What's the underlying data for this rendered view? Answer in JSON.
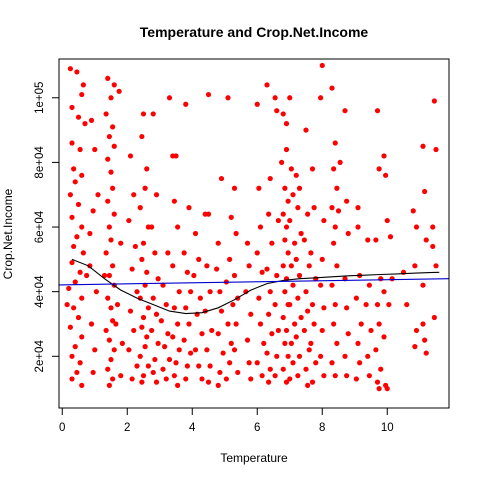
{
  "chart_data": {
    "type": "scatter",
    "title": "Temperature and Crop.Net.Income",
    "xlabel": "Temperature",
    "ylabel": "Crop.Net.Income",
    "xlim": [
      -0.1,
      11.9
    ],
    "ylim": [
      4000,
      112000
    ],
    "x_ticks": [
      0,
      2,
      4,
      6,
      8,
      10
    ],
    "x_tick_labels": [
      "0",
      "2",
      "4",
      "6",
      "8",
      "10"
    ],
    "y_ticks": [
      20000,
      40000,
      60000,
      80000,
      100000
    ],
    "y_tick_labels": [
      "2e+04",
      "4e+04",
      "6e+04",
      "8e+04",
      "1e+05"
    ],
    "point_color": "#ff0000",
    "grid": false,
    "points": [
      [
        0.25,
        109000
      ],
      [
        0.45,
        108000
      ],
      [
        0.65,
        104000
      ],
      [
        0.6,
        101000
      ],
      [
        0.3,
        97000
      ],
      [
        0.5,
        94000
      ],
      [
        0.7,
        92000
      ],
      [
        0.3,
        86000
      ],
      [
        0.55,
        84000
      ],
      [
        0.35,
        78000
      ],
      [
        0.6,
        76000
      ],
      [
        0.4,
        74000
      ],
      [
        0.25,
        70000
      ],
      [
        0.5,
        67000
      ],
      [
        0.3,
        63000
      ],
      [
        0.6,
        60000
      ],
      [
        0.45,
        57000
      ],
      [
        0.35,
        54000
      ],
      [
        0.65,
        52000
      ],
      [
        0.3,
        49000
      ],
      [
        0.55,
        46000
      ],
      [
        0.4,
        43000
      ],
      [
        0.2,
        41000
      ],
      [
        0.6,
        38000
      ],
      [
        0.35,
        35000
      ],
      [
        0.5,
        32000
      ],
      [
        0.25,
        29000
      ],
      [
        0.6,
        26000
      ],
      [
        0.4,
        23000
      ],
      [
        0.3,
        20000
      ],
      [
        0.55,
        18000
      ],
      [
        0.45,
        15000
      ],
      [
        0.3,
        13000
      ],
      [
        0.6,
        11000
      ],
      [
        0.15,
        36000
      ],
      [
        0.75,
        45000
      ],
      [
        0.9,
        93000
      ],
      [
        1.0,
        84000
      ],
      [
        0.95,
        65000
      ],
      [
        0.85,
        48000
      ],
      [
        1.05,
        40000
      ],
      [
        0.9,
        30000
      ],
      [
        1.0,
        22000
      ],
      [
        0.95,
        15000
      ],
      [
        1.1,
        70000
      ],
      [
        0.85,
        58000
      ],
      [
        1.4,
        106000
      ],
      [
        1.6,
        104000
      ],
      [
        1.5,
        100000
      ],
      [
        1.35,
        95000
      ],
      [
        1.55,
        91000
      ],
      [
        1.45,
        88000
      ],
      [
        1.6,
        85000
      ],
      [
        1.4,
        81000
      ],
      [
        1.5,
        77000
      ],
      [
        1.55,
        72000
      ],
      [
        1.4,
        68000
      ],
      [
        1.6,
        64000
      ],
      [
        1.45,
        60000
      ],
      [
        1.5,
        56000
      ],
      [
        1.35,
        52000
      ],
      [
        1.55,
        48000
      ],
      [
        1.45,
        45000
      ],
      [
        1.6,
        42000
      ],
      [
        1.4,
        38000
      ],
      [
        1.5,
        35000
      ],
      [
        1.55,
        31000
      ],
      [
        1.35,
        28000
      ],
      [
        1.45,
        25000
      ],
      [
        1.6,
        22000
      ],
      [
        1.5,
        19000
      ],
      [
        1.4,
        16000
      ],
      [
        1.55,
        13000
      ],
      [
        1.45,
        11000
      ],
      [
        1.3,
        45000
      ],
      [
        1.65,
        30000
      ],
      [
        1.75,
        102000
      ],
      [
        1.8,
        55000
      ],
      [
        1.7,
        36000
      ],
      [
        1.85,
        24000
      ],
      [
        1.8,
        14000
      ],
      [
        2.1,
        82000
      ],
      [
        2.2,
        70000
      ],
      [
        2.05,
        62000
      ],
      [
        2.25,
        54000
      ],
      [
        2.15,
        47000
      ],
      [
        2.3,
        40000
      ],
      [
        2.1,
        34000
      ],
      [
        2.2,
        28000
      ],
      [
        2.05,
        22000
      ],
      [
        2.3,
        17000
      ],
      [
        2.15,
        13000
      ],
      [
        2.5,
        95000
      ],
      [
        2.45,
        88000
      ],
      [
        2.6,
        78000
      ],
      [
        2.55,
        72000
      ],
      [
        2.4,
        66000
      ],
      [
        2.65,
        60000
      ],
      [
        2.5,
        55000
      ],
      [
        2.45,
        50000
      ],
      [
        2.6,
        46000
      ],
      [
        2.55,
        42000
      ],
      [
        2.4,
        38000
      ],
      [
        2.65,
        35000
      ],
      [
        2.5,
        32000
      ],
      [
        2.45,
        29000
      ],
      [
        2.6,
        26000
      ],
      [
        2.55,
        23000
      ],
      [
        2.4,
        20000
      ],
      [
        2.65,
        17000
      ],
      [
        2.5,
        14000
      ],
      [
        2.45,
        12000
      ],
      [
        2.8,
        95000
      ],
      [
        2.9,
        70000
      ],
      [
        2.75,
        60000
      ],
      [
        2.85,
        52000
      ],
      [
        2.95,
        44000
      ],
      [
        2.8,
        38000
      ],
      [
        2.9,
        33000
      ],
      [
        2.75,
        28000
      ],
      [
        2.95,
        24000
      ],
      [
        2.85,
        19000
      ],
      [
        2.8,
        15000
      ],
      [
        2.9,
        12000
      ],
      [
        3.1,
        42000
      ],
      [
        3.2,
        36000
      ],
      [
        3.05,
        31000
      ],
      [
        3.25,
        27000
      ],
      [
        3.15,
        23000
      ],
      [
        3.3,
        19000
      ],
      [
        3.1,
        16000
      ],
      [
        3.2,
        13000
      ],
      [
        3.3,
        100000
      ],
      [
        3.25,
        52000
      ],
      [
        3.4,
        82000
      ],
      [
        3.5,
        82000
      ],
      [
        3.45,
        68000
      ],
      [
        3.55,
        60000
      ],
      [
        3.4,
        48000
      ],
      [
        3.6,
        40000
      ],
      [
        3.45,
        35000
      ],
      [
        3.55,
        30000
      ],
      [
        3.4,
        26000
      ],
      [
        3.6,
        22000
      ],
      [
        3.5,
        18000
      ],
      [
        3.45,
        14000
      ],
      [
        3.55,
        11000
      ],
      [
        3.8,
        98000
      ],
      [
        3.9,
        66000
      ],
      [
        3.75,
        52000
      ],
      [
        3.85,
        46000
      ],
      [
        3.95,
        40000
      ],
      [
        3.8,
        35000
      ],
      [
        3.9,
        30000
      ],
      [
        3.75,
        25000
      ],
      [
        3.95,
        21000
      ],
      [
        3.85,
        17000
      ],
      [
        3.8,
        13000
      ],
      [
        4.1,
        58000
      ],
      [
        4.2,
        50000
      ],
      [
        4.05,
        45000
      ],
      [
        4.25,
        38000
      ],
      [
        4.15,
        33000
      ],
      [
        4.3,
        27000
      ],
      [
        4.1,
        22000
      ],
      [
        4.2,
        17000
      ],
      [
        4.3,
        13000
      ],
      [
        4.4,
        64000
      ],
      [
        4.5,
        64000
      ],
      [
        4.45,
        48000
      ],
      [
        4.55,
        40000
      ],
      [
        4.4,
        34000
      ],
      [
        4.6,
        28000
      ],
      [
        4.45,
        22000
      ],
      [
        4.55,
        17000
      ],
      [
        4.5,
        12000
      ],
      [
        4.5,
        101000
      ],
      [
        4.8,
        55000
      ],
      [
        4.75,
        47000
      ],
      [
        4.85,
        40000
      ],
      [
        4.9,
        34000
      ],
      [
        4.8,
        27000
      ],
      [
        4.95,
        21000
      ],
      [
        4.85,
        15000
      ],
      [
        4.8,
        11000
      ],
      [
        4.9,
        75000
      ],
      [
        5.1,
        100000
      ],
      [
        5.2,
        63000
      ],
      [
        5.15,
        50000
      ],
      [
        5.05,
        43000
      ],
      [
        5.25,
        36000
      ],
      [
        5.1,
        30000
      ],
      [
        5.2,
        24000
      ],
      [
        5.15,
        18000
      ],
      [
        5.05,
        13000
      ],
      [
        5.3,
        72000
      ],
      [
        5.35,
        58000
      ],
      [
        5.3,
        45000
      ],
      [
        5.4,
        38000
      ],
      [
        5.35,
        30000
      ],
      [
        5.3,
        22000
      ],
      [
        5.4,
        15000
      ],
      [
        5.7,
        55000
      ],
      [
        5.75,
        48000
      ],
      [
        5.65,
        40000
      ],
      [
        5.8,
        33000
      ],
      [
        5.7,
        25000
      ],
      [
        5.75,
        18000
      ],
      [
        5.8,
        13000
      ],
      [
        6.0,
        98000
      ],
      [
        6.05,
        72000
      ],
      [
        6.1,
        60000
      ],
      [
        6.0,
        52000
      ],
      [
        6.15,
        46000
      ],
      [
        6.05,
        38000
      ],
      [
        6.1,
        30000
      ],
      [
        6.2,
        24000
      ],
      [
        6.0,
        18000
      ],
      [
        6.15,
        14000
      ],
      [
        6.3,
        104000
      ],
      [
        6.4,
        75000
      ],
      [
        6.35,
        64000
      ],
      [
        6.45,
        55000
      ],
      [
        6.3,
        47000
      ],
      [
        6.4,
        40000
      ],
      [
        6.35,
        33000
      ],
      [
        6.45,
        27000
      ],
      [
        6.3,
        21000
      ],
      [
        6.4,
        16000
      ],
      [
        6.35,
        12000
      ],
      [
        6.55,
        100000
      ],
      [
        6.6,
        96000
      ],
      [
        6.65,
        62000
      ],
      [
        6.6,
        45000
      ],
      [
        6.55,
        36000
      ],
      [
        6.65,
        28000
      ],
      [
        6.6,
        20000
      ],
      [
        6.55,
        14000
      ],
      [
        6.8,
        95000
      ],
      [
        6.9,
        92000
      ],
      [
        6.85,
        72000
      ],
      [
        6.95,
        68000
      ],
      [
        6.8,
        64000
      ],
      [
        6.9,
        60000
      ],
      [
        6.85,
        56000
      ],
      [
        6.95,
        52000
      ],
      [
        6.8,
        48000
      ],
      [
        6.9,
        44000
      ],
      [
        6.85,
        40000
      ],
      [
        6.95,
        36000
      ],
      [
        6.8,
        32000
      ],
      [
        6.9,
        28000
      ],
      [
        6.85,
        24000
      ],
      [
        6.95,
        20000
      ],
      [
        6.8,
        16000
      ],
      [
        6.9,
        12000
      ],
      [
        6.75,
        80000
      ],
      [
        6.9,
        84000
      ],
      [
        7.0,
        100000
      ],
      [
        7.05,
        78000
      ],
      [
        7.1,
        70000
      ],
      [
        7.0,
        62000
      ],
      [
        7.15,
        55000
      ],
      [
        7.05,
        48000
      ],
      [
        7.1,
        42000
      ],
      [
        7.0,
        36000
      ],
      [
        7.15,
        30000
      ],
      [
        7.05,
        24000
      ],
      [
        7.1,
        18000
      ],
      [
        7.0,
        13000
      ],
      [
        7.2,
        76000
      ],
      [
        7.3,
        72000
      ],
      [
        7.25,
        66000
      ],
      [
        7.35,
        58000
      ],
      [
        7.2,
        50000
      ],
      [
        7.3,
        45000
      ],
      [
        7.25,
        38000
      ],
      [
        7.35,
        32000
      ],
      [
        7.2,
        26000
      ],
      [
        7.3,
        20000
      ],
      [
        7.25,
        14000
      ],
      [
        7.5,
        90000
      ],
      [
        7.55,
        64000
      ],
      [
        7.45,
        56000
      ],
      [
        7.6,
        48000
      ],
      [
        7.5,
        40000
      ],
      [
        7.55,
        34000
      ],
      [
        7.45,
        28000
      ],
      [
        7.6,
        22000
      ],
      [
        7.5,
        16000
      ],
      [
        7.55,
        11000
      ],
      [
        7.7,
        78000
      ],
      [
        7.75,
        66000
      ],
      [
        7.65,
        52000
      ],
      [
        7.8,
        44000
      ],
      [
        7.7,
        36000
      ],
      [
        7.75,
        30000
      ],
      [
        7.65,
        24000
      ],
      [
        7.8,
        18000
      ],
      [
        7.7,
        12000
      ],
      [
        8.0,
        110000
      ],
      [
        7.95,
        100000
      ],
      [
        8.05,
        62000
      ],
      [
        8.0,
        50000
      ],
      [
        7.95,
        42000
      ],
      [
        8.05,
        35000
      ],
      [
        8.0,
        28000
      ],
      [
        7.95,
        20000
      ],
      [
        8.05,
        14000
      ],
      [
        8.3,
        103000
      ],
      [
        8.4,
        86000
      ],
      [
        8.35,
        78000
      ],
      [
        8.45,
        72000
      ],
      [
        8.3,
        66000
      ],
      [
        8.4,
        60000
      ],
      [
        8.35,
        55000
      ],
      [
        8.45,
        48000
      ],
      [
        8.3,
        42000
      ],
      [
        8.4,
        36000
      ],
      [
        8.35,
        30000
      ],
      [
        8.45,
        24000
      ],
      [
        8.3,
        18000
      ],
      [
        8.4,
        14000
      ],
      [
        8.5,
        65000
      ],
      [
        8.55,
        80000
      ],
      [
        8.7,
        96000
      ],
      [
        8.75,
        68000
      ],
      [
        8.8,
        58000
      ],
      [
        8.7,
        44000
      ],
      [
        8.75,
        35000
      ],
      [
        8.8,
        27000
      ],
      [
        8.7,
        20000
      ],
      [
        8.75,
        14000
      ],
      [
        9.1,
        60000
      ],
      [
        9.15,
        45000
      ],
      [
        9.05,
        38000
      ],
      [
        9.2,
        30000
      ],
      [
        9.1,
        24000
      ],
      [
        9.15,
        18000
      ],
      [
        9.05,
        13000
      ],
      [
        9.1,
        66000
      ],
      [
        9.4,
        56000
      ],
      [
        9.45,
        42000
      ],
      [
        9.35,
        36000
      ],
      [
        9.5,
        28000
      ],
      [
        9.4,
        20000
      ],
      [
        9.45,
        14000
      ],
      [
        9.7,
        96000
      ],
      [
        9.75,
        78000
      ],
      [
        9.65,
        56000
      ],
      [
        9.8,
        44000
      ],
      [
        9.7,
        36000
      ],
      [
        9.75,
        30000
      ],
      [
        9.65,
        22000
      ],
      [
        9.8,
        16000
      ],
      [
        9.7,
        12000
      ],
      [
        9.75,
        10000
      ],
      [
        9.9,
        82000
      ],
      [
        9.95,
        76000
      ],
      [
        10.0,
        62000
      ],
      [
        9.9,
        40000
      ],
      [
        10.0,
        10000
      ],
      [
        9.95,
        11000
      ],
      [
        9.9,
        26000
      ],
      [
        10.1,
        57000
      ],
      [
        10.15,
        44000
      ],
      [
        10.05,
        36000
      ],
      [
        10.5,
        46000
      ],
      [
        10.6,
        36000
      ],
      [
        10.8,
        65000
      ],
      [
        10.9,
        60000
      ],
      [
        10.85,
        48000
      ],
      [
        10.9,
        28000
      ],
      [
        10.85,
        23000
      ],
      [
        11.1,
        85000
      ],
      [
        11.15,
        71000
      ],
      [
        11.2,
        56000
      ],
      [
        11.1,
        42000
      ],
      [
        11.15,
        25000
      ],
      [
        11.2,
        21000
      ],
      [
        11.1,
        30000
      ],
      [
        11.45,
        99000
      ],
      [
        11.5,
        84000
      ],
      [
        11.4,
        54000
      ],
      [
        11.5,
        48000
      ],
      [
        11.45,
        32000
      ],
      [
        11.4,
        60000
      ]
    ],
    "lines": [
      {
        "kind": "smooth",
        "color": "#000000",
        "x": [
          0.3,
          0.8,
          1.3,
          1.8,
          2.3,
          2.8,
          3.3,
          3.8,
          4.3,
          4.8,
          5.3,
          5.8,
          6.3,
          6.8,
          7.3,
          7.8,
          8.3,
          8.8,
          9.3,
          9.8,
          10.3,
          10.8,
          11.3,
          11.6
        ],
        "y": [
          50000,
          48000,
          44000,
          40500,
          38000,
          36000,
          34000,
          33200,
          33500,
          35000,
          37500,
          40500,
          42500,
          43500,
          44000,
          44300,
          44600,
          44900,
          45100,
          45300,
          45500,
          45700,
          45900,
          46000
        ]
      },
      {
        "kind": "linear",
        "color": "#0000cd",
        "x": [
          -0.1,
          11.9
        ],
        "y": [
          42100,
          44000
        ]
      }
    ]
  }
}
